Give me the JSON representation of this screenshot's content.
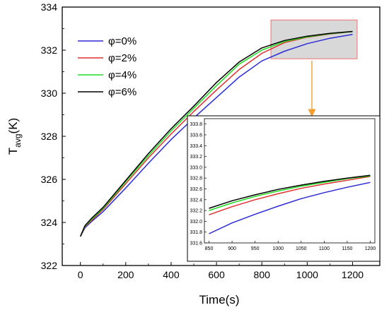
{
  "chart_data": [
    {
      "type": "line",
      "title": "",
      "xlabel": "Time(s)",
      "ylabel_main": "T",
      "ylabel_sub": "avg",
      "ylabel_suffix": "(K)",
      "xlim": [
        -80,
        1320
      ],
      "ylim": [
        322,
        334
      ],
      "xticks": [
        0,
        200,
        400,
        600,
        800,
        1000,
        1200
      ],
      "yticks": [
        322,
        324,
        326,
        328,
        330,
        332,
        334
      ],
      "x_tick_labels": [
        "0",
        "200",
        "400",
        "600",
        "800",
        "1000",
        "1200"
      ],
      "y_tick_labels": [
        "322",
        "324",
        "326",
        "328",
        "330",
        "332",
        "334"
      ],
      "legend_position": "top-left",
      "grid": false,
      "series": [
        {
          "name": "φ=0%",
          "color": "#2b2bd6",
          "x": [
            0,
            20,
            50,
            100,
            200,
            300,
            400,
            500,
            600,
            700,
            800,
            900,
            1000,
            1100,
            1200
          ],
          "y": [
            323.35,
            323.75,
            324.05,
            324.5,
            325.6,
            326.75,
            327.85,
            328.85,
            329.8,
            330.75,
            331.5,
            331.95,
            332.3,
            332.55,
            332.73
          ]
        },
        {
          "name": "φ=2%",
          "color": "#e03030",
          "x": [
            0,
            20,
            50,
            100,
            200,
            300,
            400,
            500,
            600,
            700,
            800,
            900,
            1000,
            1100,
            1200
          ],
          "y": [
            323.35,
            323.8,
            324.1,
            324.6,
            325.8,
            327.0,
            328.1,
            329.15,
            330.15,
            331.1,
            331.85,
            332.35,
            332.6,
            332.75,
            332.86
          ]
        },
        {
          "name": "φ=4%",
          "color": "#22dd22",
          "x": [
            0,
            20,
            50,
            100,
            200,
            300,
            400,
            500,
            600,
            700,
            800,
            900,
            1000,
            1100,
            1200
          ],
          "y": [
            323.35,
            323.82,
            324.15,
            324.65,
            325.9,
            327.1,
            328.25,
            329.3,
            330.35,
            331.35,
            332.0,
            332.4,
            332.62,
            332.76,
            332.86
          ]
        },
        {
          "name": "φ=6%",
          "color": "#000000",
          "x": [
            0,
            20,
            50,
            100,
            200,
            300,
            400,
            500,
            600,
            700,
            800,
            900,
            1000,
            1100,
            1200
          ],
          "y": [
            323.35,
            323.85,
            324.2,
            324.7,
            325.95,
            327.2,
            328.35,
            329.4,
            330.5,
            331.45,
            332.1,
            332.45,
            332.65,
            332.78,
            332.87
          ]
        }
      ]
    },
    {
      "type": "line",
      "title": "",
      "xlim": [
        840,
        1210
      ],
      "ylim": [
        331.6,
        333.9
      ],
      "xticks": [
        850,
        900,
        950,
        1000,
        1050,
        1100,
        1150,
        1200
      ],
      "yticks": [
        331.6,
        331.8,
        332.0,
        332.2,
        332.4,
        332.6,
        332.8,
        333.0,
        333.2,
        333.4,
        333.6,
        333.8
      ],
      "x_tick_labels": [
        "850",
        "900",
        "950",
        "1000",
        "1050",
        "1100",
        "1150",
        "1200"
      ],
      "y_tick_labels": [
        "331.6",
        "331.8",
        "332.0",
        "332.2",
        "332.4",
        "332.6",
        "332.8",
        "333.0",
        "333.2",
        "333.4",
        "333.6",
        "333.8"
      ],
      "grid": false,
      "zoom_region": {
        "x": [
          840,
          1220
        ],
        "y": [
          331.6,
          333.4
        ]
      },
      "series": [
        {
          "name": "φ=0%",
          "color": "#2b2bd6",
          "x": [
            850,
            900,
            950,
            1000,
            1050,
            1100,
            1150,
            1200
          ],
          "y": [
            331.77,
            331.97,
            332.13,
            332.28,
            332.42,
            332.53,
            332.63,
            332.72
          ]
        },
        {
          "name": "φ=2%",
          "color": "#e03030",
          "x": [
            850,
            900,
            950,
            1000,
            1050,
            1100,
            1150,
            1200
          ],
          "y": [
            332.12,
            332.27,
            332.4,
            332.51,
            332.61,
            332.69,
            332.76,
            332.83
          ]
        },
        {
          "name": "φ=4%",
          "color": "#22dd22",
          "x": [
            850,
            900,
            950,
            1000,
            1050,
            1100,
            1150,
            1200
          ],
          "y": [
            332.2,
            332.34,
            332.46,
            332.56,
            332.65,
            332.72,
            332.79,
            332.84
          ]
        },
        {
          "name": "φ=6%",
          "color": "#000000",
          "x": [
            850,
            900,
            950,
            1000,
            1050,
            1100,
            1150,
            1200
          ],
          "y": [
            332.24,
            332.38,
            332.49,
            332.59,
            332.67,
            332.74,
            332.8,
            332.85
          ]
        }
      ]
    }
  ],
  "style": {
    "zoom_box_fill": "#d8d8d8",
    "zoom_box_stroke": "#f07070",
    "arrow_color": "#f0a030"
  }
}
